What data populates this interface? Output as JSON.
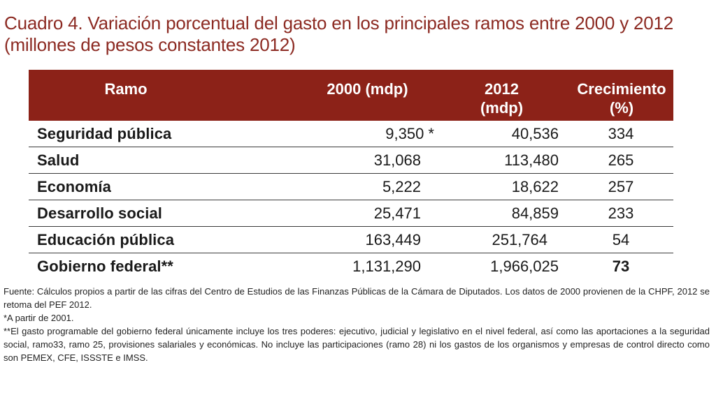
{
  "title": {
    "line1": "Cuadro 4. Variación porcentual del gasto en los principales ramos entre 2000 y 2012",
    "line2": "(millones de pesos constantes 2012)"
  },
  "colors": {
    "title": "#8c2a22",
    "header_bg": "#8c2218",
    "header_text": "#ffffff"
  },
  "table": {
    "headers": {
      "ramo": "Ramo",
      "y2000": "2000 (mdp)",
      "y2012_line1": "2012",
      "y2012_line2": "(mdp)",
      "crec_line1": "Crecimiento",
      "crec_line2": "(%)"
    },
    "rows": [
      {
        "ramo": "Seguridad pública",
        "v2000": "9,350 *",
        "v2012": "40,536",
        "crec": "334"
      },
      {
        "ramo": "Salud",
        "v2000": "31,068",
        "v2012": "113,480",
        "crec": "265"
      },
      {
        "ramo": "Economía",
        "v2000": "5,222",
        "v2012": "18,622",
        "crec": "257"
      },
      {
        "ramo": "Desarrollo social",
        "v2000": "25,471",
        "v2012": "84,859",
        "crec": "233"
      },
      {
        "ramo": "Educación pública",
        "v2000": "163,449",
        "v2012": "251,764",
        "crec": "54"
      },
      {
        "ramo": "Gobierno federal**",
        "v2000": "1,131,290",
        "v2012": "1,966,025",
        "crec": "73"
      }
    ]
  },
  "notes": {
    "fuente": "Fuente: Cálculos propios a partir de las cifras del Centro de Estudios de las Finanzas Públicas de la Cámara de Diputados. Los datos de 2000 provienen de la CHPF, 2012 se retoma del PEF 2012.",
    "nota1": "*A partir de 2001.",
    "nota2": "**El gasto programable del gobierno federal únicamente incluye los tres poderes: ejecutivo, judicial y legislativo en el nivel federal, así como las aportaciones a la seguridad social, ramo33, ramo 25, provisiones salariales y económicas. No incluye las participaciones (ramo 28) ni los gastos de los organismos y empresas de control directo como son PEMEX, CFE, ISSSTE e IMSS."
  }
}
